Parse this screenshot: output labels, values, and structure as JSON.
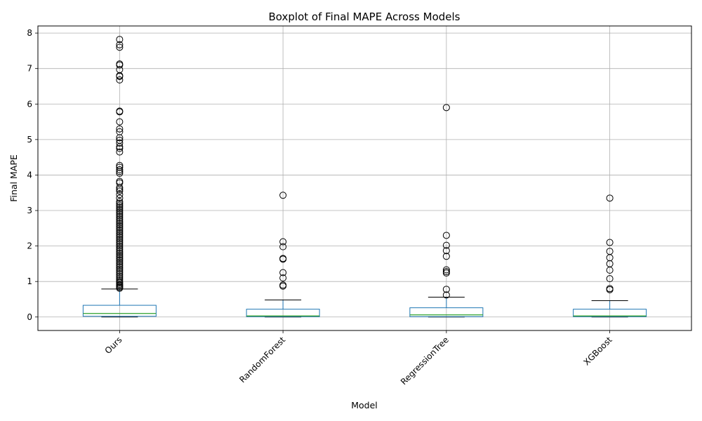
{
  "chart_data": {
    "type": "boxplot",
    "title": "Boxplot of Final MAPE Across Models",
    "xlabel": "Model",
    "ylabel": "Final MAPE",
    "ylim": [
      -0.38,
      8.2
    ],
    "yticks": [
      0,
      1,
      2,
      3,
      4,
      5,
      6,
      7,
      8
    ],
    "grid": true,
    "colors": {
      "box": "#1f77b4",
      "median": "#2ca02c",
      "whisker": "#1f77b4",
      "cap": "#000000",
      "grid": "#b0b0b0"
    },
    "categories": [
      "Ours",
      "RandomForest",
      "RegressionTree",
      "XGBoost"
    ],
    "boxes": [
      {
        "name": "Ours",
        "whislo": 0.0,
        "q1": 0.02,
        "med": 0.1,
        "q3": 0.33,
        "whishi": 0.79,
        "fliers": [
          7.82,
          7.67,
          7.6,
          7.13,
          7.1,
          6.97,
          6.8,
          6.78,
          6.68,
          5.8,
          5.78,
          5.5,
          5.3,
          5.22,
          5.05,
          4.98,
          4.9,
          4.8,
          4.75,
          4.65,
          4.27,
          4.22,
          4.15,
          4.1,
          4.05,
          3.82,
          3.78,
          3.65,
          3.6,
          3.55,
          3.45,
          3.35,
          3.25,
          3.2,
          3.15,
          3.1,
          3.05,
          3.0,
          2.95,
          2.9,
          2.85,
          2.8,
          2.75,
          2.7,
          2.65,
          2.6,
          2.55,
          2.5,
          2.45,
          2.4,
          2.35,
          2.3,
          2.25,
          2.2,
          2.15,
          2.1,
          2.05,
          2.0,
          1.95,
          1.9,
          1.85,
          1.8,
          1.75,
          1.7,
          1.65,
          1.6,
          1.55,
          1.5,
          1.45,
          1.4,
          1.35,
          1.3,
          1.25,
          1.2,
          1.15,
          1.1,
          1.05,
          1.0,
          0.97,
          0.93,
          0.9,
          0.87,
          0.84,
          0.81
        ]
      },
      {
        "name": "RandomForest",
        "whislo": 0.0,
        "q1": 0.01,
        "med": 0.03,
        "q3": 0.22,
        "whishi": 0.48,
        "fliers": [
          3.43,
          2.12,
          1.98,
          1.65,
          1.63,
          1.25,
          1.1,
          0.9,
          0.87
        ]
      },
      {
        "name": "RegressionTree",
        "whislo": 0.0,
        "q1": 0.01,
        "med": 0.06,
        "q3": 0.26,
        "whishi": 0.56,
        "fliers": [
          5.9,
          2.3,
          2.02,
          1.87,
          1.71,
          1.33,
          1.28,
          1.24,
          0.78,
          0.62
        ]
      },
      {
        "name": "XGBoost",
        "whislo": 0.0,
        "q1": 0.01,
        "med": 0.03,
        "q3": 0.22,
        "whishi": 0.46,
        "fliers": [
          3.35,
          2.1,
          1.85,
          1.67,
          1.5,
          1.32,
          1.08,
          0.8,
          0.77
        ]
      }
    ]
  }
}
